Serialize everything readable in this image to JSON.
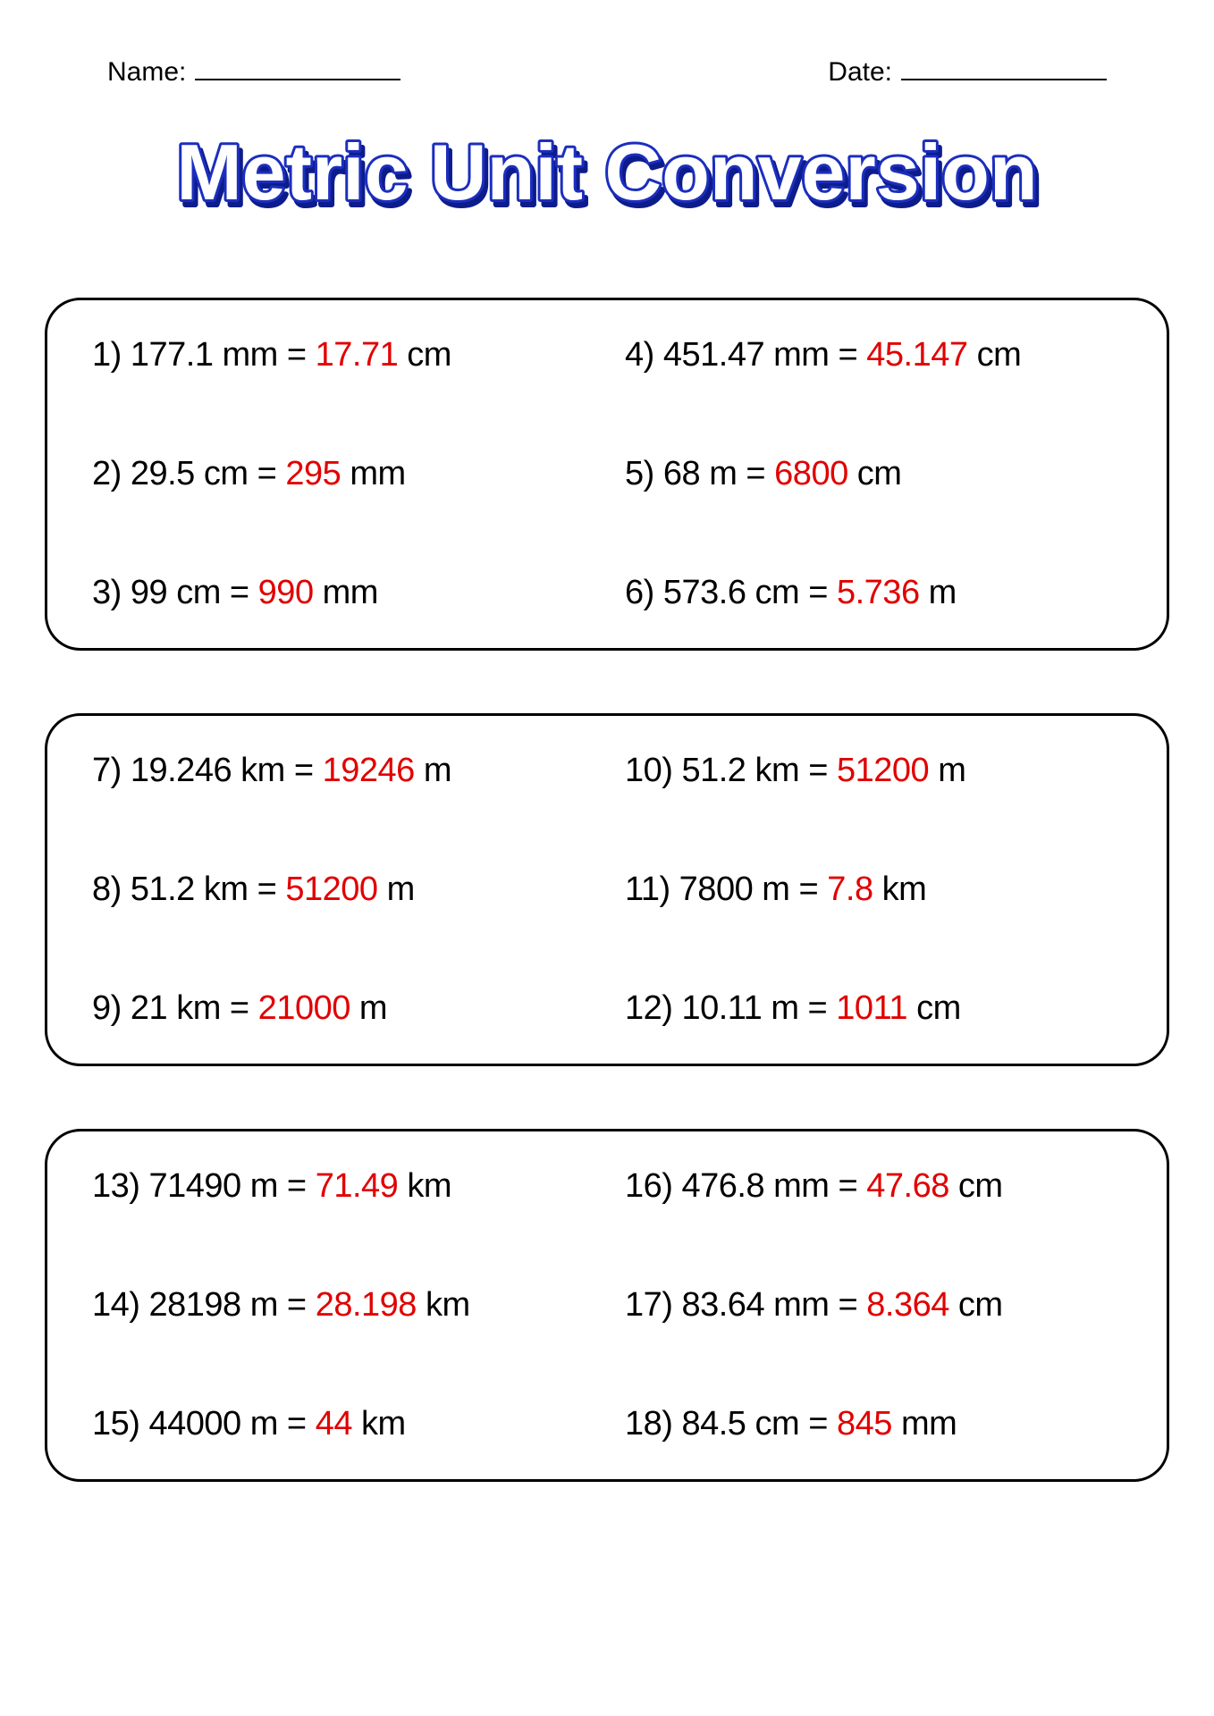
{
  "header": {
    "name_label": "Name:",
    "date_label": "Date:"
  },
  "title": "Metric Unit Conversion",
  "title_color": "#1a2fbf",
  "answer_color": "#e10000",
  "text_color": "#000000",
  "shadow_color": "#0b1a8a",
  "problem_fontsize": 38,
  "boxes": [
    {
      "left": [
        {
          "n": "1",
          "lhs_val": "177.1",
          "lhs_unit": "mm",
          "ans": "17.71",
          "rhs_unit": "cm"
        },
        {
          "n": "2",
          "lhs_val": "29.5",
          "lhs_unit": "cm",
          "ans": "295",
          "rhs_unit": "mm"
        },
        {
          "n": "3",
          "lhs_val": "99",
          "lhs_unit": "cm",
          "ans": "990",
          "rhs_unit": "mm"
        }
      ],
      "right": [
        {
          "n": "4",
          "lhs_val": "451.47",
          "lhs_unit": "mm",
          "ans": "45.147",
          "rhs_unit": "cm"
        },
        {
          "n": "5",
          "lhs_val": "68",
          "lhs_unit": "m",
          "ans": "6800",
          "rhs_unit": "cm"
        },
        {
          "n": "6",
          "lhs_val": "573.6",
          "lhs_unit": "cm",
          "ans": "5.736",
          "rhs_unit": "m"
        }
      ]
    },
    {
      "left": [
        {
          "n": "7",
          "lhs_val": "19.246",
          "lhs_unit": "km",
          "ans": " 19246",
          "rhs_unit": "m"
        },
        {
          "n": "8",
          "lhs_val": "51.2",
          "lhs_unit": "km",
          "ans": "51200 ",
          "rhs_unit": "m"
        },
        {
          "n": "9",
          "lhs_val": "21",
          "lhs_unit": "km",
          "ans": "21000",
          "rhs_unit": "m"
        }
      ],
      "right": [
        {
          "n": "10",
          "lhs_val": "51.2",
          "lhs_unit": "km",
          "ans": "51200",
          "rhs_unit": "m"
        },
        {
          "n": "11",
          "lhs_val": "7800",
          "lhs_unit": "m",
          "ans": "7.8",
          "rhs_unit": "km"
        },
        {
          "n": "12",
          "lhs_val": "10.11",
          "lhs_unit": "m",
          "ans": "1011",
          "rhs_unit": "cm"
        }
      ]
    },
    {
      "left": [
        {
          "n": "13",
          "lhs_val": "71490",
          "lhs_unit": "m",
          "ans": "71.49",
          "rhs_unit": "km"
        },
        {
          "n": "14",
          "lhs_val": "28198",
          "lhs_unit": "m",
          "ans": "28.198",
          "rhs_unit": "km"
        },
        {
          "n": "15",
          "lhs_val": "44000",
          "lhs_unit": "m",
          "ans": "44",
          "rhs_unit": "km"
        }
      ],
      "right": [
        {
          "n": "16",
          "lhs_val": "476.8",
          "lhs_unit": "mm",
          "ans": "47.68",
          "rhs_unit": "cm"
        },
        {
          "n": "17",
          "lhs_val": "83.64",
          "lhs_unit": "mm",
          "ans": " 8.364",
          "rhs_unit": "cm"
        },
        {
          "n": "18",
          "lhs_val": "84.5",
          "lhs_unit": "cm",
          "ans": "845",
          "rhs_unit": "mm"
        }
      ]
    }
  ]
}
